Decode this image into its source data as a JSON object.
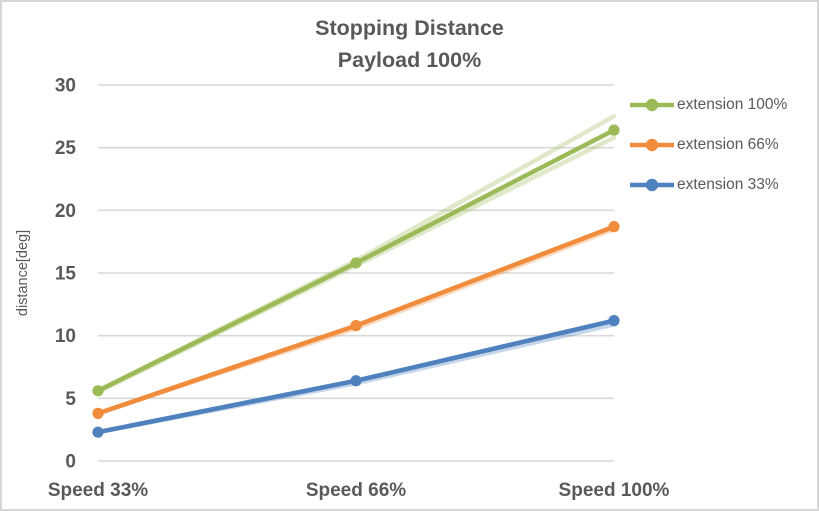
{
  "header": {
    "title_line1": "Stopping Distance",
    "title_line2": "Payload 100%"
  },
  "chart_data": {
    "type": "line",
    "title": "Stopping Distance Payload 100%",
    "categories": [
      "Speed 33%",
      "Speed 66%",
      "Speed 100%"
    ],
    "series": [
      {
        "name": "extension 100%",
        "color": "#9bbb59",
        "values": [
          5.6,
          15.8,
          26.4
        ]
      },
      {
        "name": "extension 66%",
        "color": "#f08c3c",
        "values": [
          3.8,
          10.8,
          18.7
        ]
      },
      {
        "name": "extension 33%",
        "color": "#4e81bd",
        "values": [
          2.3,
          6.4,
          11.2
        ]
      }
    ],
    "faint_runs": [
      {
        "series": "extension 100%",
        "color": "#9bbb59",
        "values": [
          5.6,
          16.0,
          27.5
        ]
      },
      {
        "series": "extension 100%",
        "color": "#9bbb59",
        "values": [
          5.5,
          15.6,
          25.8
        ]
      },
      {
        "series": "extension 66%",
        "color": "#f08c3c",
        "values": [
          3.8,
          10.6,
          18.5
        ]
      },
      {
        "series": "extension 33%",
        "color": "#4e81bd",
        "values": [
          2.3,
          6.2,
          10.9
        ]
      }
    ],
    "xlabel": "",
    "ylabel": "distance[deg]",
    "ylim": [
      0,
      30
    ],
    "yticks": [
      0,
      5,
      10,
      15,
      20,
      25,
      30
    ],
    "grid": true,
    "legend_position": "right"
  },
  "colors": {
    "text": "#595959",
    "gridline": "#d9d9d9",
    "frame_border": "#d6d6d6",
    "background": "#ffffff"
  }
}
